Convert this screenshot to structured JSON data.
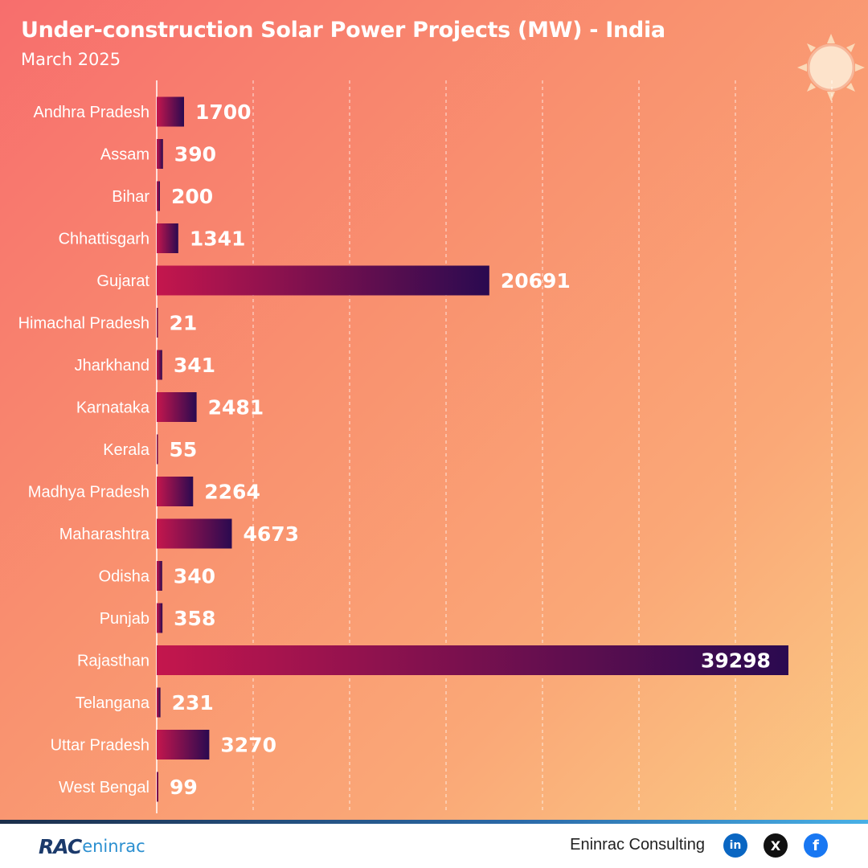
{
  "header": {
    "title": "Under-construction Solar Power Projects (MW) - India",
    "subtitle": "March 2025"
  },
  "chart_data": {
    "type": "bar",
    "orientation": "horizontal",
    "title": "Under-construction Solar Power Projects (MW) - India",
    "subtitle": "March 2025",
    "xlabel": "",
    "ylabel": "",
    "xlim": [
      0,
      42000
    ],
    "grid": "vertical dashed",
    "categories": [
      "Andhra Pradesh",
      "Assam",
      "Bihar",
      "Chhattisgarh",
      "Gujarat",
      "Himachal Pradesh",
      "Jharkhand",
      "Karnataka",
      "Kerala",
      "Madhya Pradesh",
      "Maharashtra",
      "Odisha",
      "Punjab",
      "Rajasthan",
      "Telangana",
      "Uttar Pradesh",
      "West Bengal"
    ],
    "values": [
      1700,
      390,
      200,
      1341,
      20691,
      21,
      341,
      2481,
      55,
      2264,
      4673,
      340,
      358,
      39298,
      231,
      3270,
      99
    ],
    "value_labels": [
      "1700",
      "390",
      "200",
      "1341",
      "20691",
      "21",
      "341",
      "2481",
      "55",
      "2264",
      "4673",
      "340",
      "358",
      "39298",
      "231",
      "3270",
      "99"
    ],
    "bar_gradient": [
      "#c4164d",
      "#2a0a50"
    ]
  },
  "footer": {
    "logo_text_1": "RAC",
    "logo_text_2": "eninrac",
    "brand": "Eninrac Consulting",
    "icons": [
      "linkedin-icon",
      "x-icon",
      "facebook-icon"
    ],
    "linkedin_glyph": "in",
    "x_glyph": "X",
    "facebook_glyph": "f"
  }
}
